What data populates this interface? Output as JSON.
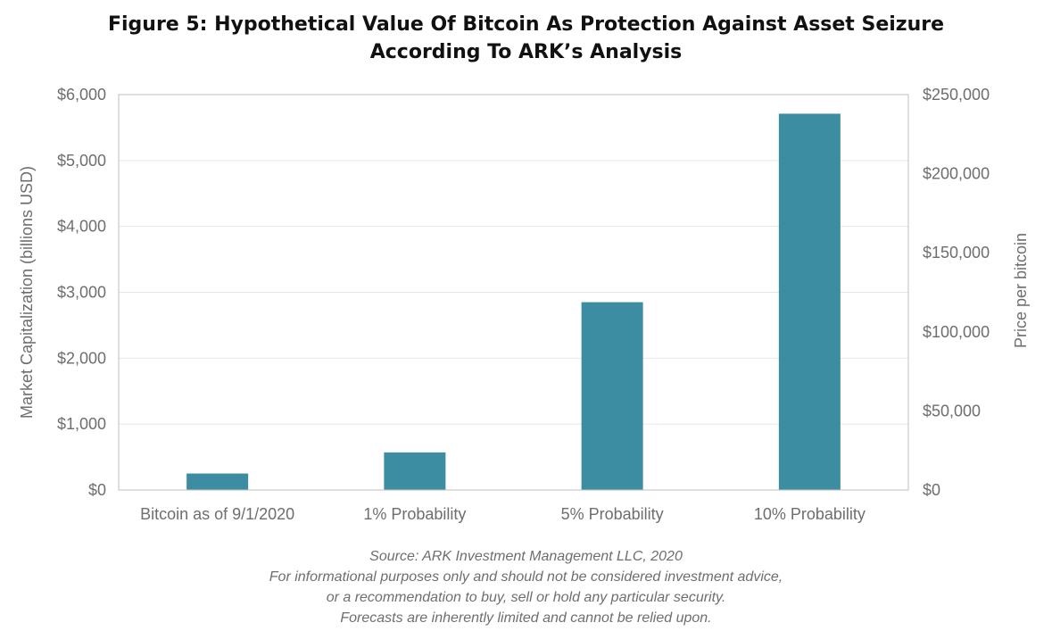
{
  "title_lines": [
    "Figure 5: Hypothetical Value Of Bitcoin As Protection Against Asset Seizure",
    "According To ARK’s Analysis"
  ],
  "footer_lines": [
    "Source: ARK Investment Management LLC, 2020",
    "For informational purposes only and should not be considered investment advice,",
    "or a recommendation to buy, sell or hold any particular security.",
    "Forecasts are inherently limited and cannot be relied upon."
  ],
  "colors": {
    "bar": "#3c8da1",
    "grid": "#e6e6e6",
    "axis": "#bfbfbf",
    "text": "#6d6e70"
  },
  "chart_data": {
    "type": "bar",
    "categories": [
      "Bitcoin as of 9/1/2020",
      "1% Probability",
      "5% Probability",
      "10% Probability"
    ],
    "values": [
      250,
      570,
      2850,
      5710
    ],
    "ylabel": "Market Capitalization (billions USD)",
    "ylim": [
      0,
      6000
    ],
    "yticks": [
      0,
      1000,
      2000,
      3000,
      4000,
      5000,
      6000
    ],
    "ytick_labels": [
      "$0",
      "$1,000",
      "$2,000",
      "$3,000",
      "$4,000",
      "$5,000",
      "$6,000"
    ],
    "y2label": "Price per bitcoin",
    "y2lim": [
      0,
      250000
    ],
    "y2ticks": [
      0,
      50000,
      100000,
      150000,
      200000,
      250000
    ],
    "y2tick_labels": [
      "$0",
      "$50,000",
      "$100,000",
      "$150,000",
      "$200,000",
      "$250,000"
    ],
    "grid": true,
    "legend": "none"
  }
}
